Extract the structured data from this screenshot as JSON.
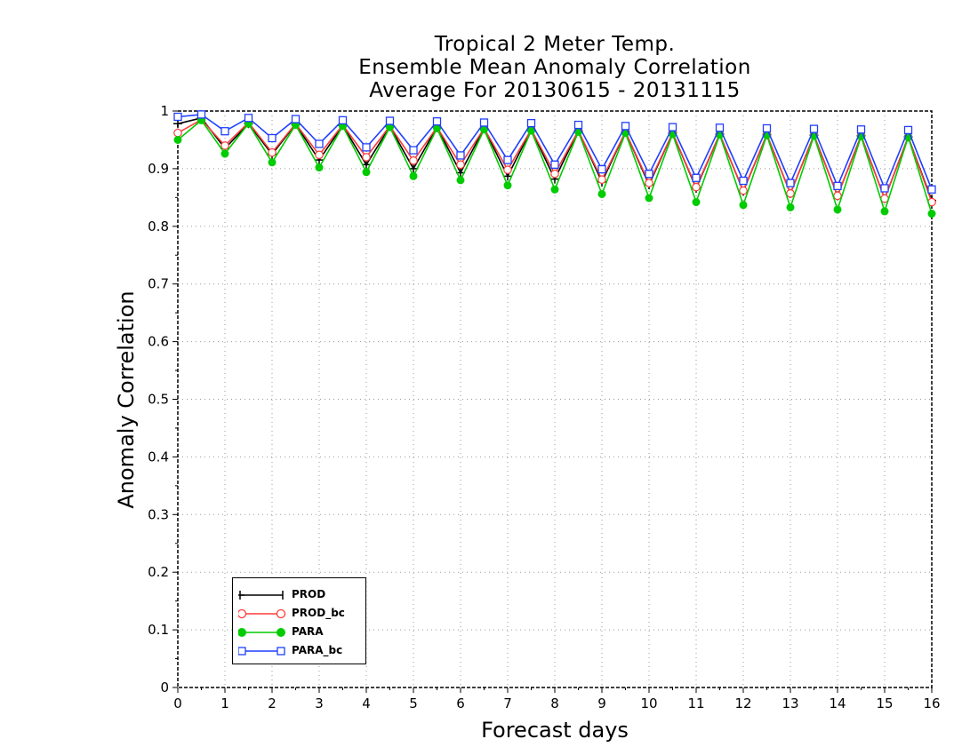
{
  "chart_data": {
    "type": "line",
    "title": [
      "Tropical 2 Meter Temp.",
      "Ensemble Mean Anomaly Correlation",
      "Average For 20130615 - 20131115"
    ],
    "xlabel": "Forecast days",
    "ylabel": "Anomaly Correlation",
    "xlim": [
      0,
      16
    ],
    "ylim": [
      0,
      1
    ],
    "xticks": [
      "0",
      "1",
      "2",
      "3",
      "4",
      "5",
      "6",
      "7",
      "8",
      "9",
      "10",
      "11",
      "12",
      "13",
      "14",
      "15",
      "16"
    ],
    "yticks": [
      "0",
      "0.1",
      "0.2",
      "0.3",
      "0.4",
      "0.5",
      "0.6",
      "0.7",
      "0.8",
      "0.9",
      "1"
    ],
    "grid": true,
    "legend_position": "bottom-left",
    "x": [
      0,
      0.5,
      1,
      1.5,
      2,
      2.5,
      3,
      3.5,
      4,
      4.5,
      5,
      5.5,
      6,
      6.5,
      7,
      7.5,
      8,
      8.5,
      9,
      9.5,
      10,
      10.5,
      11,
      11.5,
      12,
      12.5,
      13,
      13.5,
      14,
      14.5,
      15,
      15.5,
      16
    ],
    "series": [
      {
        "name": "PROD",
        "color": "#000000",
        "marker": "plus",
        "values": [
          0.978,
          0.988,
          0.935,
          0.978,
          0.925,
          0.977,
          0.915,
          0.975,
          0.907,
          0.973,
          0.9,
          0.972,
          0.893,
          0.97,
          0.887,
          0.968,
          0.882,
          0.966,
          0.877,
          0.964,
          0.872,
          0.962,
          0.866,
          0.96,
          0.861,
          0.959,
          0.857,
          0.958,
          0.853,
          0.957,
          0.848,
          0.955,
          0.845
        ]
      },
      {
        "name": "PROD_bc",
        "color": "#ff3b3b",
        "marker": "circle-open",
        "values": [
          0.962,
          0.985,
          0.94,
          0.98,
          0.928,
          0.978,
          0.924,
          0.976,
          0.92,
          0.974,
          0.914,
          0.972,
          0.907,
          0.97,
          0.898,
          0.968,
          0.891,
          0.966,
          0.881,
          0.964,
          0.875,
          0.962,
          0.868,
          0.96,
          0.862,
          0.959,
          0.857,
          0.958,
          0.853,
          0.957,
          0.848,
          0.955,
          0.842
        ]
      },
      {
        "name": "PARA",
        "color": "#00cc00",
        "marker": "circle-filled",
        "values": [
          0.95,
          0.984,
          0.926,
          0.978,
          0.911,
          0.976,
          0.902,
          0.974,
          0.894,
          0.972,
          0.887,
          0.97,
          0.88,
          0.968,
          0.871,
          0.966,
          0.864,
          0.964,
          0.856,
          0.962,
          0.849,
          0.96,
          0.842,
          0.959,
          0.837,
          0.958,
          0.833,
          0.957,
          0.829,
          0.956,
          0.826,
          0.955,
          0.822
        ]
      },
      {
        "name": "PARA_bc",
        "color": "#1f3fff",
        "marker": "square-open",
        "values": [
          0.99,
          0.994,
          0.965,
          0.988,
          0.953,
          0.986,
          0.943,
          0.984,
          0.937,
          0.983,
          0.932,
          0.982,
          0.923,
          0.98,
          0.915,
          0.979,
          0.907,
          0.976,
          0.899,
          0.974,
          0.891,
          0.972,
          0.884,
          0.971,
          0.879,
          0.97,
          0.875,
          0.969,
          0.87,
          0.968,
          0.866,
          0.967,
          0.864
        ]
      }
    ]
  }
}
